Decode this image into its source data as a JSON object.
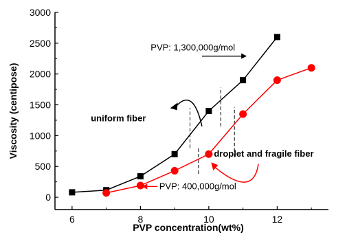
{
  "chart_data": {
    "type": "line",
    "xlabel": "PVP concentration(wt%)",
    "ylabel": "Viscosity (centipose)",
    "xlim": [
      5.5,
      13.5
    ],
    "ylim": [
      -200,
      3000
    ],
    "xticks": [
      6,
      8,
      10,
      12
    ],
    "yticks": [
      0,
      500,
      1000,
      1500,
      2000,
      2500,
      3000
    ],
    "legend": "none",
    "grid": false,
    "series": [
      {
        "name": "PVP: 1,300,000g/mol",
        "color": "#000000",
        "marker": "square",
        "x": [
          6,
          7,
          8,
          9,
          10,
          11,
          12
        ],
        "y": [
          80,
          115,
          340,
          700,
          1400,
          1900,
          2600
        ]
      },
      {
        "name": "PVP: 400,000g/mol",
        "color": "#ff0000",
        "marker": "circle",
        "x": [
          7,
          8,
          9,
          10,
          11,
          12,
          13
        ],
        "y": [
          70,
          190,
          430,
          700,
          1350,
          1900,
          2100
        ]
      }
    ],
    "annotations": [
      {
        "text": "uniform fiber"
      },
      {
        "text": "droplet and fragile fiber"
      }
    ]
  }
}
